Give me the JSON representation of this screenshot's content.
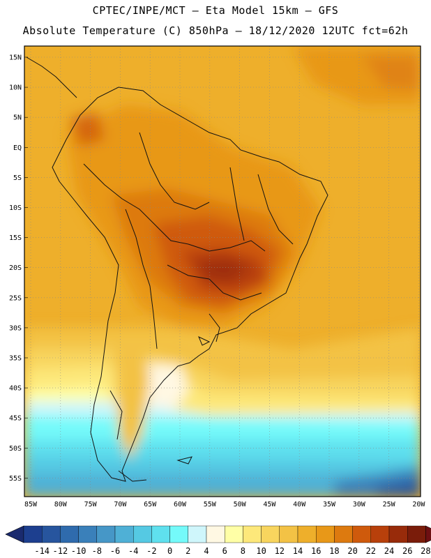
{
  "header": {
    "line1": "CPTEC/INPE/MCT –  Eta Model 15km – GFS",
    "line2": "Absolute Temperature (C) 850hPa – 18/12/2020 12UTC fct=62h"
  },
  "axes": {
    "lat_labels": [
      "15N",
      "10N",
      "5N",
      "EQ",
      "5S",
      "10S",
      "15S",
      "20S",
      "25S",
      "30S",
      "35S",
      "40S",
      "45S",
      "50S",
      "55S"
    ],
    "lon_labels": [
      "85W",
      "80W",
      "75W",
      "70W",
      "65W",
      "60W",
      "55W",
      "50W",
      "45W",
      "40W",
      "35W",
      "30W",
      "25W",
      "20W"
    ]
  },
  "colorbar": {
    "labels": [
      "-14",
      "-12",
      "-10",
      "-8",
      "-6",
      "-4",
      "-2",
      "0",
      "2",
      "4",
      "6",
      "8",
      "10",
      "12",
      "14",
      "16",
      "18",
      "20",
      "22",
      "24",
      "26",
      "28"
    ],
    "colors": [
      "#1d3f8f",
      "#27559e",
      "#2f6bad",
      "#3a80ba",
      "#4697c7",
      "#4fb0d6",
      "#55c9e3",
      "#5fe0ee",
      "#74fafa",
      "#cff6fb",
      "#fff8e3",
      "#ffffa6",
      "#fde87a",
      "#f8d55e",
      "#f3c245",
      "#eeaf2b",
      "#e89818",
      "#dd7a0f",
      "#cf5a0c",
      "#b8400b",
      "#982b0a",
      "#7a1c0a"
    ],
    "left_arrow_color": "#1a2a6e",
    "right_arrow_color": "#6e0f12"
  }
}
